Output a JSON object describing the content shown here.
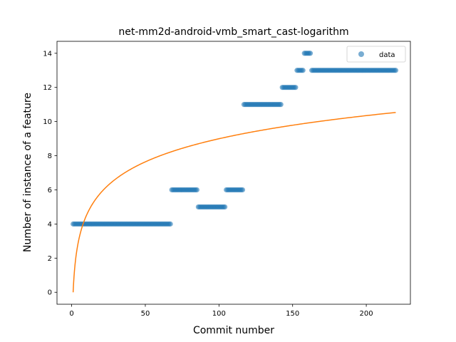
{
  "chart_data": {
    "type": "scatter",
    "title": "net-mm2d-android-vmb_smart_cast-logarithm",
    "xlabel": "Commit number",
    "ylabel": "Number of instance of a feature",
    "xlim": [
      -9.95,
      229.95
    ],
    "ylim": [
      -0.7,
      14.7
    ],
    "xticks": [
      0,
      50,
      100,
      150,
      200
    ],
    "yticks": [
      0,
      2,
      4,
      6,
      8,
      10,
      12,
      14
    ],
    "grid": false,
    "legend": {
      "placement": "top-right",
      "entries": [
        "data"
      ]
    },
    "series": [
      {
        "name": "data",
        "kind": "scatter",
        "color": "#1f77b4",
        "segments": [
          {
            "x_from": 1,
            "x_to": 67,
            "y": 4
          },
          {
            "x_from": 68,
            "x_to": 85,
            "y": 6
          },
          {
            "x_from": 86,
            "x_to": 104,
            "y": 5
          },
          {
            "x_from": 105,
            "x_to": 116,
            "y": 6
          },
          {
            "x_from": 117,
            "x_to": 142,
            "y": 11
          },
          {
            "x_from": 143,
            "x_to": 152,
            "y": 12
          },
          {
            "x_from": 153,
            "x_to": 157,
            "y": 13
          },
          {
            "x_from": 158,
            "x_to": 162,
            "y": 14
          },
          {
            "x_from": 163,
            "x_to": 220,
            "y": 13
          }
        ]
      },
      {
        "name": "",
        "kind": "line",
        "color": "#ff7f0e",
        "function": "logarithm",
        "x_range": [
          1,
          220
        ],
        "a": 1.953,
        "b": 0
      }
    ]
  }
}
